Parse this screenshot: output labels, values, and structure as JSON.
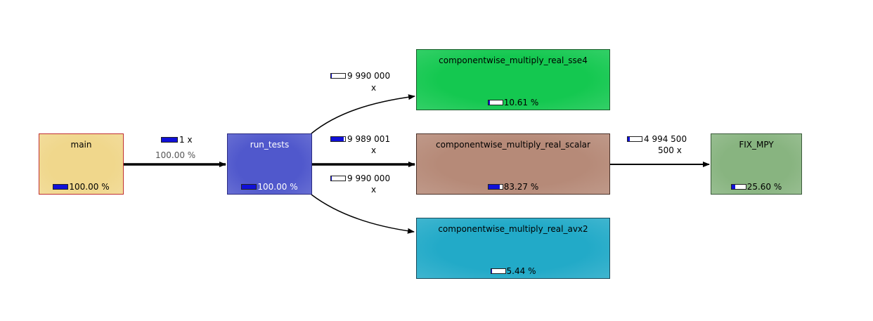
{
  "nodes": [
    {
      "id": "main",
      "label": "main",
      "pct": "100.00 %",
      "fill": 1.0,
      "color": "#f0d78c",
      "border": "#c03030",
      "text": "#000"
    },
    {
      "id": "run_tests",
      "label": "run_tests",
      "pct": "100.00 %",
      "fill": 1.0,
      "color": "#5058cc",
      "border": "#2a2a80",
      "text": "#ffffff"
    },
    {
      "id": "sse4",
      "label": "componentwise_multiply_real_sse4",
      "pct": "10.61 %",
      "fill": 0.1061,
      "color": "#14c850",
      "border": "#1a5a2a",
      "text": "#000"
    },
    {
      "id": "scalar",
      "label": "componentwise_multiply_real_scalar",
      "pct": "83.27 %",
      "fill": 0.8327,
      "color": "#b68a78",
      "border": "#4a3028",
      "text": "#000"
    },
    {
      "id": "avx2",
      "label": "componentwise_multiply_real_avx2",
      "pct": "5.44 %",
      "fill": 0.0544,
      "color": "#22aac8",
      "border": "#1a4a5a",
      "text": "#000"
    },
    {
      "id": "fix_mpy",
      "label": "FIX_MPY",
      "pct": "25.60 %",
      "fill": 0.256,
      "color": "#88b480",
      "border": "#3a5a3a",
      "text": "#000"
    }
  ],
  "edges": [
    {
      "id": "main-run",
      "count": "1 x",
      "sub": "100.00 %",
      "fill": 1.0
    },
    {
      "id": "run-sse4",
      "count": "9 990 000",
      "sub": "x",
      "fill": 0.05
    },
    {
      "id": "run-scalar",
      "count": "9 989 001",
      "sub": "x",
      "fill": 0.9
    },
    {
      "id": "run-avx2",
      "count": "9 990 000",
      "sub": "x",
      "fill": 0.02
    },
    {
      "id": "scalar-fix",
      "count": "4 994 500",
      "sub": "500 x",
      "fill": 0.15
    }
  ]
}
